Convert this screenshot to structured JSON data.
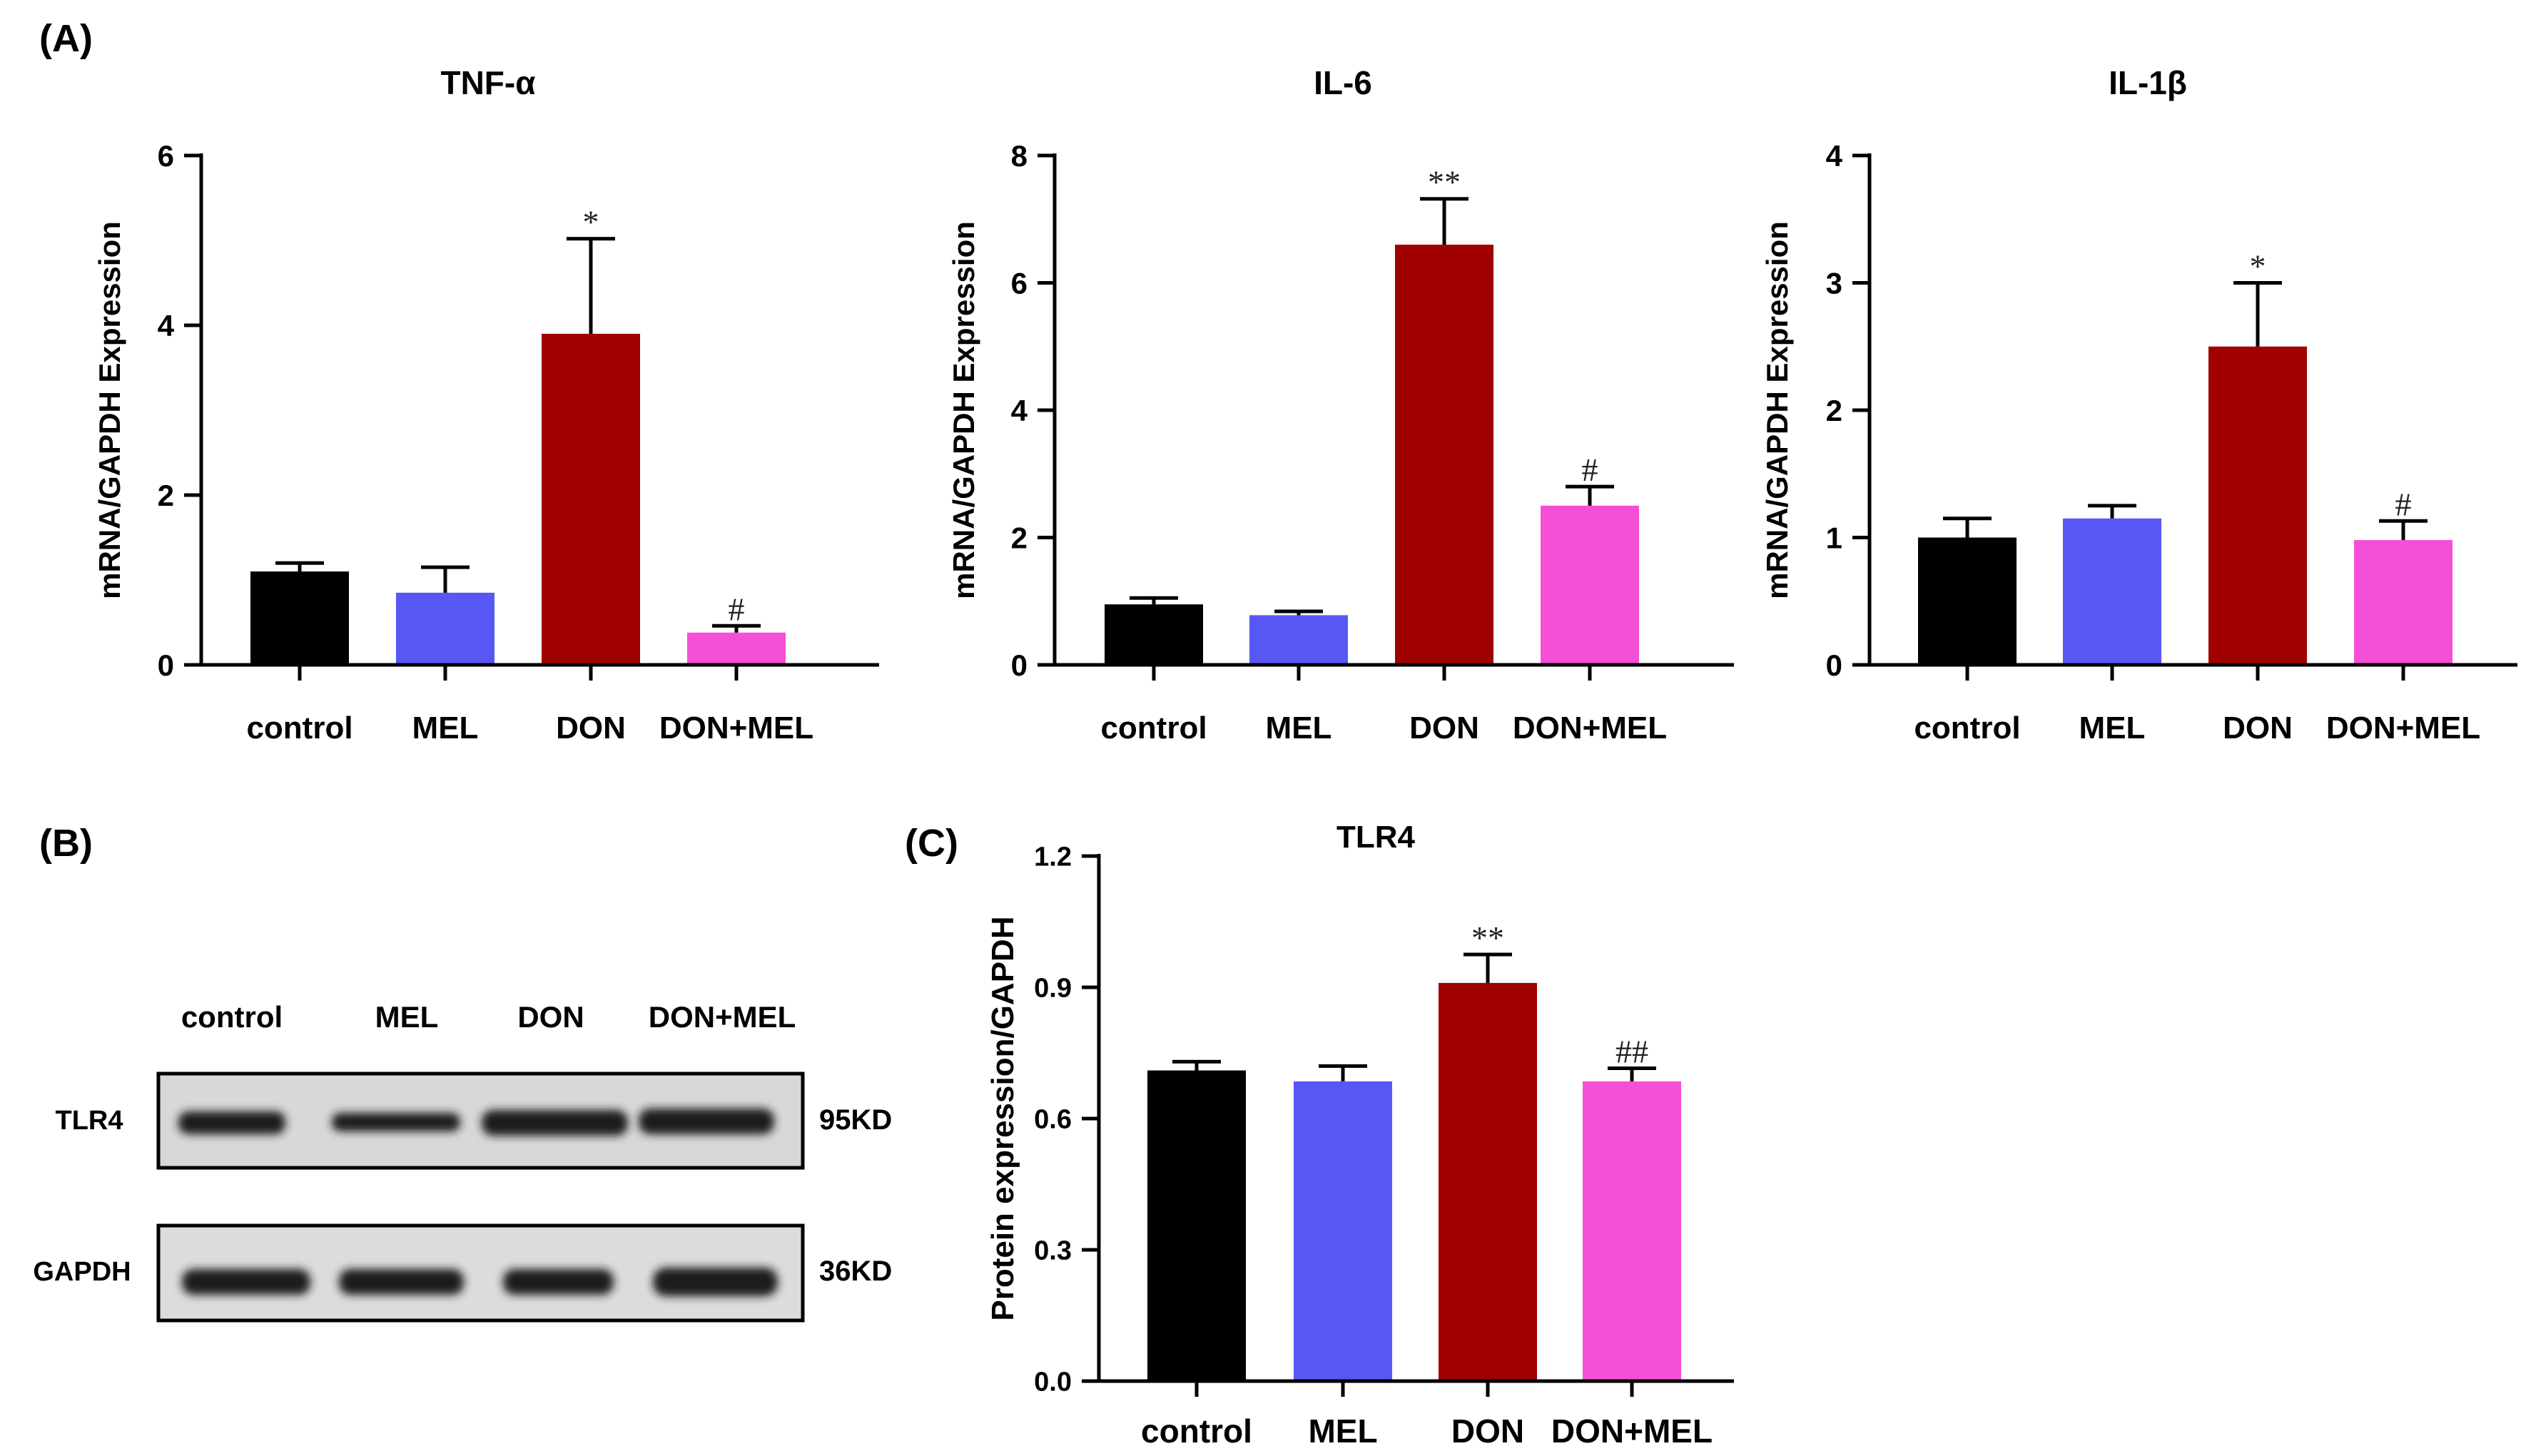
{
  "colors": {
    "control": "#000000",
    "MEL": "#5757f5",
    "DON": "#a00000",
    "DON+MEL": "#f54fd7",
    "axis": "#000000"
  },
  "panel_labels": {
    "a": "(A)",
    "b": "(B)",
    "c": "(C)"
  },
  "western_blot": {
    "lanes": [
      "control",
      "MEL",
      "DON",
      "DON+MEL"
    ],
    "rows": [
      {
        "label": "TLR4",
        "size": "95KD"
      },
      {
        "label": "GAPDH",
        "size": "36KD"
      }
    ]
  },
  "chart_data": [
    {
      "type": "bar",
      "title": "TNF-α",
      "ylabel": "mRNA/GAPDH Expression",
      "xlabel": "",
      "categories": [
        "control",
        "MEL",
        "DON",
        "DON+MEL"
      ],
      "values": [
        1.1,
        0.85,
        3.9,
        0.38
      ],
      "errors": [
        0.1,
        0.3,
        1.12,
        0.08
      ],
      "annotations": [
        "",
        "",
        "*",
        "#"
      ],
      "ylim": [
        0,
        6
      ],
      "yticks": [
        0,
        2,
        4,
        6
      ],
      "ytick_labels": [
        "0",
        "2",
        "4",
        "6"
      ]
    },
    {
      "type": "bar",
      "title": "IL-6",
      "ylabel": "mRNA/GAPDH Expression",
      "xlabel": "",
      "categories": [
        "control",
        "MEL",
        "DON",
        "DON+MEL"
      ],
      "values": [
        0.95,
        0.78,
        6.6,
        2.5
      ],
      "errors": [
        0.1,
        0.06,
        0.72,
        0.3
      ],
      "annotations": [
        "",
        "",
        "**",
        "#"
      ],
      "ylim": [
        0,
        8
      ],
      "yticks": [
        0,
        2,
        4,
        6,
        8
      ],
      "ytick_labels": [
        "0",
        "2",
        "4",
        "6",
        "8"
      ]
    },
    {
      "type": "bar",
      "title": "IL-1β",
      "ylabel": "mRNA/GAPDH Expression",
      "xlabel": "",
      "categories": [
        "control",
        "MEL",
        "DON",
        "DON+MEL"
      ],
      "values": [
        1.0,
        1.15,
        2.5,
        0.98
      ],
      "errors": [
        0.15,
        0.1,
        0.5,
        0.15
      ],
      "annotations": [
        "",
        "",
        "*",
        "#"
      ],
      "ylim": [
        0,
        4
      ],
      "yticks": [
        0,
        1,
        2,
        3,
        4
      ],
      "ytick_labels": [
        "0",
        "1",
        "2",
        "3",
        "4"
      ]
    },
    {
      "type": "bar",
      "title": "TLR4",
      "ylabel": "Protein expression/GAPDH",
      "xlabel": "",
      "categories": [
        "control",
        "MEL",
        "DON",
        "DON+MEL"
      ],
      "values": [
        0.71,
        0.685,
        0.91,
        0.685
      ],
      "errors": [
        0.02,
        0.035,
        0.065,
        0.03
      ],
      "annotations": [
        "",
        "",
        "**",
        "##"
      ],
      "ylim": [
        0,
        1.2
      ],
      "yticks": [
        0,
        0.3,
        0.6,
        0.9,
        1.2
      ],
      "ytick_labels": [
        "0.0",
        "0.3",
        "0.6",
        "0.9",
        "1.2"
      ]
    }
  ]
}
